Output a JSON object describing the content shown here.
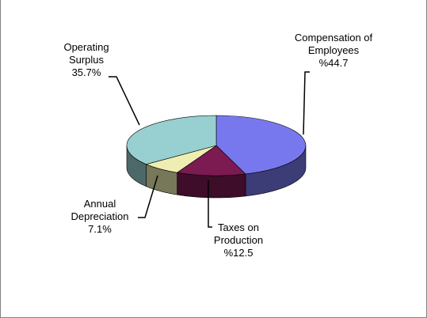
{
  "chart_data": {
    "type": "pie",
    "categories": [
      "Compensation of Employees",
      "Taxes on Production",
      "Annual Depreciation",
      "Operating Surplus"
    ],
    "values": [
      44.7,
      12.5,
      7.1,
      35.7
    ],
    "value_labels": [
      "%44.7",
      "%12.5",
      "7.1%",
      "35.7%"
    ],
    "colors": [
      "#7878ee",
      "#7c1a52",
      "#eeeeb2",
      "#98cfd0"
    ]
  }
}
